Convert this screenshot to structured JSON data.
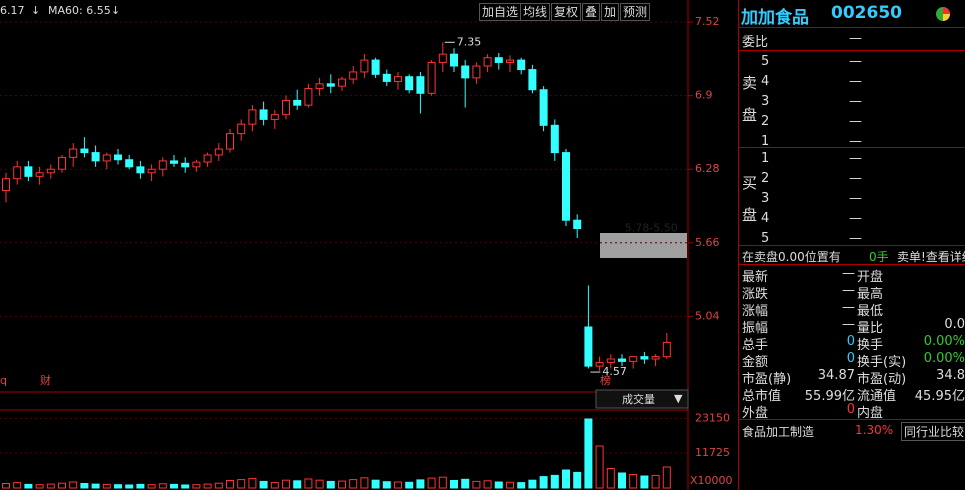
{
  "legend": {
    "last": "6.17",
    "ma60": "MA60: 6.55",
    "arrow": "↓"
  },
  "toolbar": [
    "加自选",
    "均线",
    "复权",
    "叠",
    "加",
    "预测"
  ],
  "markers": [
    "q",
    "财",
    "榜"
  ],
  "volume_label": "成交量",
  "volume_unit": "X10000",
  "chart_data": {
    "type": "candlestick",
    "ylim": [
      4.52,
      7.58
    ],
    "yticks": [
      7.52,
      6.9,
      6.28,
      5.66,
      5.04
    ],
    "candles": [
      [
        6.1,
        6.25,
        6.0,
        6.2
      ],
      [
        6.2,
        6.35,
        6.15,
        6.3
      ],
      [
        6.3,
        6.35,
        6.18,
        6.22
      ],
      [
        6.22,
        6.3,
        6.15,
        6.25
      ],
      [
        6.25,
        6.32,
        6.2,
        6.28
      ],
      [
        6.28,
        6.4,
        6.25,
        6.38
      ],
      [
        6.38,
        6.5,
        6.3,
        6.45
      ],
      [
        6.45,
        6.55,
        6.38,
        6.42
      ],
      [
        6.42,
        6.48,
        6.3,
        6.35
      ],
      [
        6.35,
        6.42,
        6.28,
        6.4
      ],
      [
        6.4,
        6.45,
        6.32,
        6.36
      ],
      [
        6.36,
        6.4,
        6.28,
        6.3
      ],
      [
        6.3,
        6.35,
        6.2,
        6.25
      ],
      [
        6.25,
        6.32,
        6.18,
        6.28
      ],
      [
        6.28,
        6.38,
        6.22,
        6.35
      ],
      [
        6.35,
        6.4,
        6.3,
        6.33
      ],
      [
        6.33,
        6.38,
        6.25,
        6.3
      ],
      [
        6.3,
        6.36,
        6.26,
        6.34
      ],
      [
        6.34,
        6.42,
        6.3,
        6.4
      ],
      [
        6.4,
        6.5,
        6.35,
        6.45
      ],
      [
        6.45,
        6.62,
        6.42,
        6.58
      ],
      [
        6.58,
        6.7,
        6.52,
        6.66
      ],
      [
        6.66,
        6.82,
        6.6,
        6.78
      ],
      [
        6.78,
        6.85,
        6.65,
        6.7
      ],
      [
        6.7,
        6.78,
        6.62,
        6.74
      ],
      [
        6.74,
        6.9,
        6.7,
        6.86
      ],
      [
        6.86,
        6.95,
        6.78,
        6.82
      ],
      [
        6.82,
        7.0,
        6.8,
        6.96
      ],
      [
        6.96,
        7.05,
        6.9,
        7.0
      ],
      [
        7.0,
        7.08,
        6.92,
        6.98
      ],
      [
        6.98,
        7.06,
        6.94,
        7.04
      ],
      [
        7.04,
        7.15,
        7.0,
        7.1
      ],
      [
        7.1,
        7.25,
        7.05,
        7.2
      ],
      [
        7.2,
        7.22,
        7.05,
        7.08
      ],
      [
        7.08,
        7.12,
        6.98,
        7.02
      ],
      [
        7.02,
        7.1,
        6.95,
        7.06
      ],
      [
        7.06,
        7.08,
        6.92,
        6.95
      ],
      [
        7.06,
        7.1,
        6.75,
        6.92
      ],
      [
        6.92,
        7.2,
        6.9,
        7.18
      ],
      [
        7.18,
        7.35,
        7.1,
        7.25
      ],
      [
        7.25,
        7.3,
        7.1,
        7.15
      ],
      [
        7.15,
        7.2,
        6.8,
        7.05
      ],
      [
        7.05,
        7.18,
        7.0,
        7.15
      ],
      [
        7.15,
        7.25,
        7.1,
        7.22
      ],
      [
        7.22,
        7.26,
        7.12,
        7.18
      ],
      [
        7.18,
        7.24,
        7.1,
        7.2
      ],
      [
        7.2,
        7.22,
        7.08,
        7.12
      ],
      [
        7.12,
        7.16,
        6.92,
        6.95
      ],
      [
        6.95,
        6.98,
        6.6,
        6.65
      ],
      [
        6.65,
        6.7,
        6.35,
        6.42
      ],
      [
        6.42,
        6.45,
        5.8,
        5.85
      ],
      [
        5.85,
        5.9,
        5.7,
        5.78
      ],
      [
        4.95,
        5.3,
        4.6,
        4.62
      ],
      [
        4.62,
        4.7,
        4.58,
        4.65
      ],
      [
        4.65,
        4.72,
        4.6,
        4.68
      ],
      [
        4.68,
        4.72,
        4.62,
        4.66
      ],
      [
        4.66,
        4.7,
        4.6,
        4.7
      ],
      [
        4.7,
        4.74,
        4.64,
        4.68
      ],
      [
        4.68,
        4.72,
        4.62,
        4.7
      ],
      [
        4.7,
        4.9,
        4.68,
        4.82
      ]
    ],
    "annotations": [
      {
        "text": "7.35",
        "index": 39,
        "value": 7.35
      },
      {
        "text": "4.57",
        "index": 52,
        "value": 4.57
      },
      {
        "text": "5.78-5.50",
        "index": 54,
        "value": 5.78
      }
    ],
    "volume": {
      "ylim": [
        0,
        26000
      ],
      "yticks": [
        23150,
        11725
      ],
      "values": [
        1500,
        1800,
        1200,
        1100,
        1300,
        1600,
        2000,
        1500,
        1300,
        1200,
        1100,
        1000,
        1200,
        1100,
        1400,
        1200,
        1000,
        1100,
        1300,
        1600,
        2500,
        2800,
        3200,
        2200,
        1800,
        2600,
        2400,
        3000,
        2600,
        2200,
        2300,
        2800,
        3400,
        2600,
        2100,
        2000,
        1900,
        2700,
        3300,
        3600,
        2500,
        2900,
        2200,
        2400,
        2000,
        1900,
        1800,
        2600,
        3800,
        4200,
        6000,
        5200,
        23000,
        14000,
        6500,
        5000,
        4500,
        4000,
        4200,
        7000
      ]
    }
  },
  "panel": {
    "name": "加加食品",
    "code": "002650",
    "weibi": [
      "委比",
      "—"
    ],
    "sell_label": [
      "卖",
      "盘"
    ],
    "sell": [
      [
        "5",
        "—"
      ],
      [
        "4",
        "—"
      ],
      [
        "3",
        "—"
      ],
      [
        "2",
        "—"
      ],
      [
        "1",
        "—"
      ]
    ],
    "buy_label": [
      "买",
      "盘"
    ],
    "buy": [
      [
        "1",
        "—"
      ],
      [
        "2",
        "—"
      ],
      [
        "3",
        "—"
      ],
      [
        "4",
        "—"
      ],
      [
        "5",
        "—"
      ]
    ],
    "notice": [
      "在卖盘0.00位置有",
      "0手",
      "卖单!查看详细"
    ],
    "quotes": [
      [
        "最新",
        "—",
        "开盘",
        ""
      ],
      [
        "涨跌",
        "—",
        "最高",
        ""
      ],
      [
        "涨幅",
        "—",
        "最低",
        ""
      ],
      [
        "振幅",
        "—",
        "量比",
        "0.0"
      ],
      [
        "总手",
        "0",
        "换手",
        "0.00%"
      ],
      [
        "金额",
        "0",
        "换手(实)",
        "0.00%"
      ],
      [
        "市盈(静)",
        "34.87",
        "市盈(动)",
        "34.8"
      ],
      [
        "总市值",
        "55.99亿",
        "流通值",
        "45.95亿"
      ],
      [
        "外盘",
        "0",
        "内盘",
        ""
      ]
    ],
    "industry": [
      "食品加工制造",
      "1.30%",
      "同行业比较"
    ]
  }
}
